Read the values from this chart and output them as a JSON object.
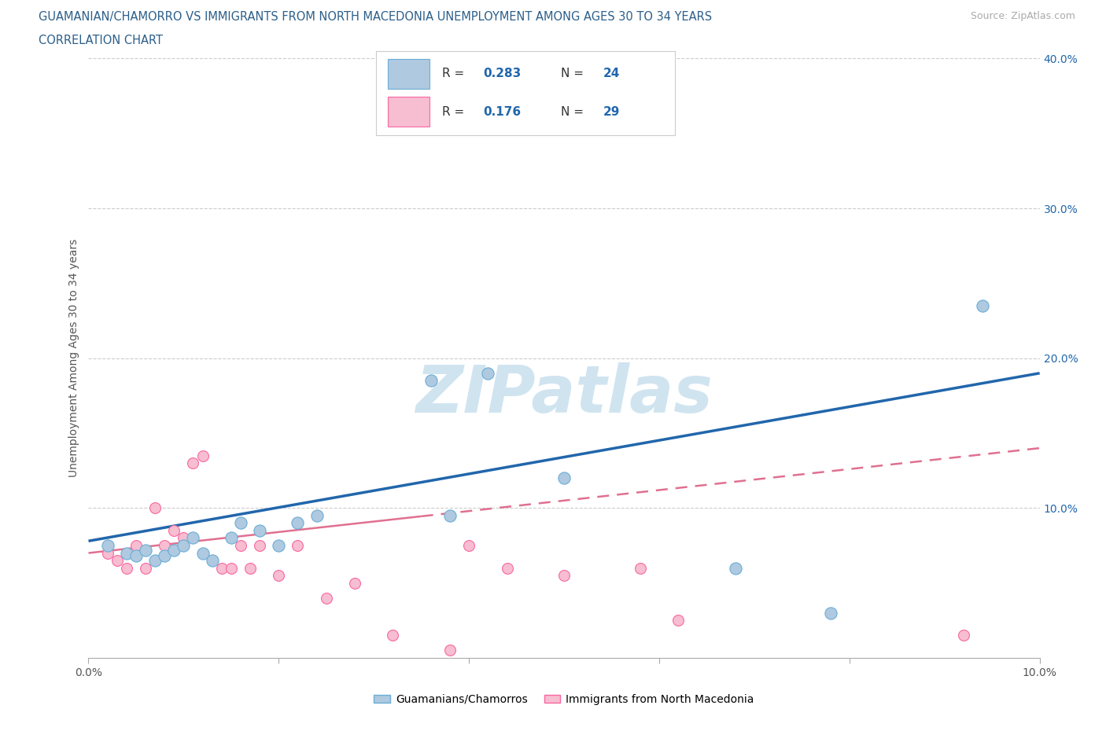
{
  "title_line1": "GUAMANIAN/CHAMORRO VS IMMIGRANTS FROM NORTH MACEDONIA UNEMPLOYMENT AMONG AGES 30 TO 34 YEARS",
  "title_line2": "CORRELATION CHART",
  "source_text": "Source: ZipAtlas.com",
  "ylabel": "Unemployment Among Ages 30 to 34 years",
  "xlim": [
    0,
    0.1
  ],
  "ylim": [
    0,
    0.4
  ],
  "blue_scatter_x": [
    0.002,
    0.004,
    0.005,
    0.006,
    0.007,
    0.008,
    0.009,
    0.01,
    0.011,
    0.012,
    0.013,
    0.015,
    0.016,
    0.018,
    0.02,
    0.022,
    0.024,
    0.036,
    0.038,
    0.042,
    0.05,
    0.068,
    0.078,
    0.094
  ],
  "blue_scatter_y": [
    0.075,
    0.07,
    0.068,
    0.072,
    0.065,
    0.068,
    0.072,
    0.075,
    0.08,
    0.07,
    0.065,
    0.08,
    0.09,
    0.085,
    0.075,
    0.09,
    0.095,
    0.185,
    0.095,
    0.19,
    0.12,
    0.06,
    0.03,
    0.235
  ],
  "pink_scatter_x": [
    0.002,
    0.003,
    0.004,
    0.005,
    0.006,
    0.007,
    0.008,
    0.009,
    0.01,
    0.011,
    0.012,
    0.013,
    0.014,
    0.015,
    0.016,
    0.017,
    0.018,
    0.02,
    0.022,
    0.025,
    0.028,
    0.032,
    0.038,
    0.04,
    0.044,
    0.05,
    0.058,
    0.062,
    0.092
  ],
  "pink_scatter_y": [
    0.07,
    0.065,
    0.06,
    0.075,
    0.06,
    0.1,
    0.075,
    0.085,
    0.08,
    0.13,
    0.135,
    0.065,
    0.06,
    0.06,
    0.075,
    0.06,
    0.075,
    0.055,
    0.075,
    0.04,
    0.05,
    0.015,
    0.005,
    0.075,
    0.06,
    0.055,
    0.06,
    0.025,
    0.015
  ],
  "blue_dot_size": 120,
  "pink_dot_size": 100,
  "blue_color": "#aec9e0",
  "blue_edge_color": "#6baed6",
  "pink_color": "#f7bdd0",
  "pink_edge_color": "#f768a1",
  "blue_line_color": "#2166ac",
  "pink_line_color": "#e07090",
  "R_blue": "0.283",
  "N_blue": "24",
  "R_pink": "0.176",
  "N_pink": "29",
  "watermark": "ZIPatlas",
  "watermark_color": "#d0e4f0",
  "background_color": "#ffffff",
  "grid_color": "#cccccc",
  "legend1": "Guamanians/Chamorros",
  "legend2": "Immigrants from North Macedonia",
  "title_color": "#2c5f8a",
  "source_color": "#aaaaaa",
  "ylabel_color": "#555555",
  "tick_color": "#555555",
  "right_tick_color": "#2166ac",
  "legend_R_color": "#333333",
  "legend_N_color": "#2166ac",
  "legend_val_color": "#2166ac"
}
